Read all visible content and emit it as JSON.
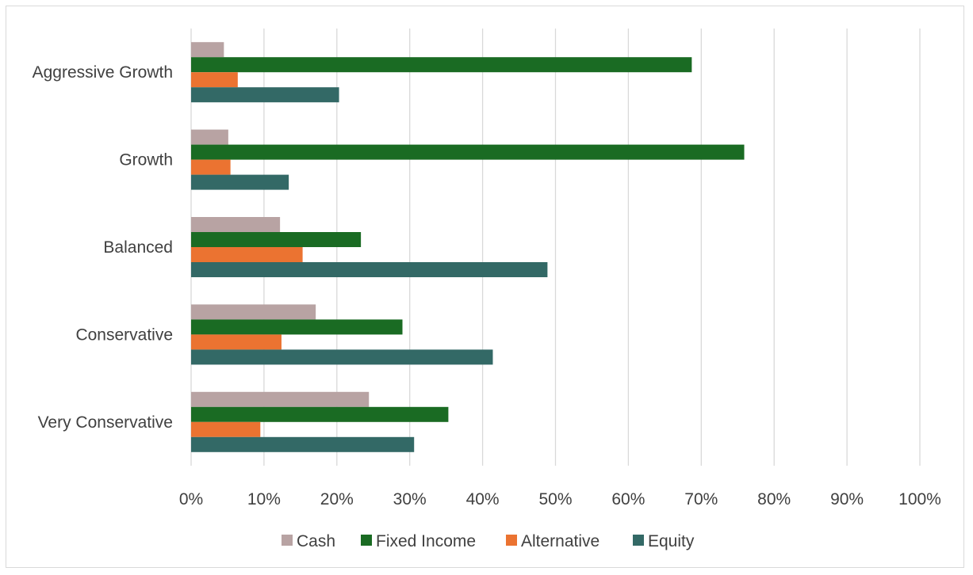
{
  "chart_data": {
    "type": "bar",
    "orientation": "horizontal",
    "categories": [
      "Very Conservative",
      "Conservative",
      "Balanced",
      "Growth",
      "Aggressive Growth"
    ],
    "series": [
      {
        "name": "Cash",
        "color": "#b8a3a3",
        "values": [
          24.4,
          17.1,
          12.2,
          5.1,
          4.5
        ]
      },
      {
        "name": "Fixed Income",
        "color": "#1a6b23",
        "values": [
          35.3,
          29.0,
          23.3,
          75.9,
          68.7
        ]
      },
      {
        "name": "Alternative",
        "color": "#eb7331",
        "values": [
          9.5,
          12.4,
          15.3,
          5.4,
          6.4
        ]
      },
      {
        "name": "Equity",
        "color": "#336966",
        "values": [
          30.6,
          41.4,
          48.9,
          13.4,
          20.3
        ]
      }
    ],
    "xlim": [
      0,
      100
    ],
    "xticks": [
      "0%",
      "10%",
      "20%",
      "30%",
      "40%",
      "50%",
      "60%",
      "70%",
      "80%",
      "90%",
      "100%"
    ],
    "grid": true,
    "legend_position": "bottom",
    "title": "",
    "xlabel": "",
    "ylabel": ""
  }
}
